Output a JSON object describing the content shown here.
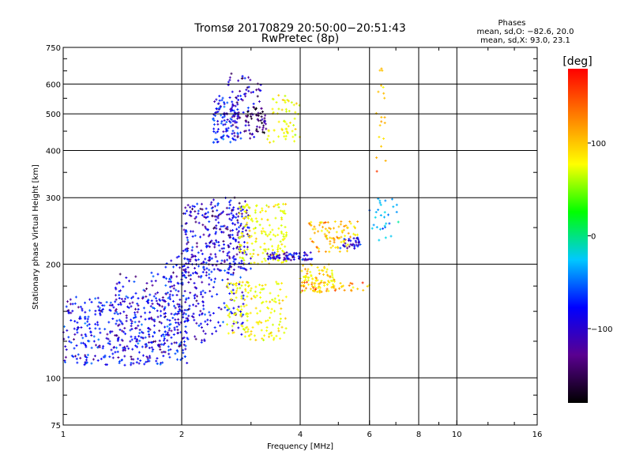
{
  "chart_data": {
    "type": "scatter",
    "title": "Tromsø 20170829 20:50:00−20:51:43",
    "subtitle": "RwPretec (8p)",
    "xlabel": "Frequency [MHz]",
    "ylabel": "Stationary phase Virtual Height [km]",
    "x_scale": "log",
    "y_scale": "log",
    "xlim": [
      1,
      16
    ],
    "ylim": [
      75,
      750
    ],
    "x_ticks": [
      1,
      2,
      4,
      6,
      8,
      10,
      16
    ],
    "x_tick_labels": [
      "1",
      "2",
      "4",
      "6",
      "8",
      "10",
      "16"
    ],
    "y_ticks": [
      75,
      100,
      200,
      300,
      400,
      500,
      600,
      750
    ],
    "y_tick_labels": [
      "75",
      "100",
      "200",
      "300",
      "400",
      "500",
      "600",
      "750"
    ],
    "grid": true,
    "phase_stats": {
      "header": "Phases",
      "o_line": "mean, sd,O: −82.6, 20.0",
      "x_line": "mean, sd,X: 93.0, 23.1"
    },
    "colorbar": {
      "label": "[deg]",
      "range": [
        -180,
        180
      ],
      "ticks": [
        100,
        0,
        -100
      ],
      "tick_labels": [
        "100",
        "0",
        "−100"
      ],
      "colors": [
        "#000000",
        "#5a0090",
        "#0000ff",
        "#00c8ff",
        "#00ff00",
        "#ffff00",
        "#ff8000",
        "#ff0000"
      ]
    },
    "clusters": [
      {
        "name": "",
        "fmin": 1.0,
        "fmax": 2.1,
        "hmin": 108,
        "hmax": 165,
        "phase": -110,
        "count": 420
      },
      {
        "name": "",
        "fmin": 1.3,
        "fmax": 2.3,
        "hmin": 120,
        "hmax": 190,
        "phase": -120,
        "count": 160
      },
      {
        "name": "",
        "fmin": 1.8,
        "fmax": 2.9,
        "hmin": 130,
        "hmax": 210,
        "phase": -115,
        "count": 180
      },
      {
        "name": "",
        "fmin": 2.0,
        "fmax": 3.0,
        "hmin": 190,
        "hmax": 290,
        "phase": -120,
        "count": 220
      },
      {
        "name": "",
        "fmin": 2.3,
        "fmax": 2.9,
        "hmin": 210,
        "hmax": 300,
        "phase": -125,
        "count": 80
      },
      {
        "name": "",
        "fmin": 2.4,
        "fmax": 2.8,
        "hmin": 420,
        "hmax": 560,
        "phase": -105,
        "count": 110
      },
      {
        "name": "",
        "fmin": 2.6,
        "fmax": 3.2,
        "hmin": 430,
        "hmax": 640,
        "phase": -130,
        "count": 70
      },
      {
        "name": "",
        "fmin": 2.9,
        "fmax": 3.3,
        "hmin": 440,
        "hmax": 520,
        "phase": -150,
        "count": 50
      },
      {
        "name": "",
        "fmin": 3.3,
        "fmax": 4.0,
        "hmin": 420,
        "hmax": 560,
        "phase": 90,
        "count": 60
      },
      {
        "name": "",
        "fmin": 2.8,
        "fmax": 3.7,
        "hmin": 200,
        "hmax": 290,
        "phase": 90,
        "count": 160
      },
      {
        "name": "",
        "fmin": 2.6,
        "fmax": 3.7,
        "hmin": 125,
        "hmax": 180,
        "phase": 95,
        "count": 160
      },
      {
        "name": "",
        "fmin": 3.3,
        "fmax": 4.3,
        "hmin": 205,
        "hmax": 215,
        "phase": -120,
        "count": 70
      },
      {
        "name": "",
        "fmin": 4.0,
        "fmax": 4.9,
        "hmin": 168,
        "hmax": 200,
        "phase": 110,
        "count": 90
      },
      {
        "name": "",
        "fmin": 4.2,
        "fmax": 5.6,
        "hmin": 215,
        "hmax": 260,
        "phase": 120,
        "count": 90
      },
      {
        "name": "",
        "fmin": 5.0,
        "fmax": 5.7,
        "hmin": 220,
        "hmax": 235,
        "phase": -120,
        "count": 30
      },
      {
        "name": "",
        "fmin": 4.0,
        "fmax": 6.0,
        "hmin": 170,
        "hmax": 180,
        "phase": 130,
        "count": 40
      },
      {
        "name": "",
        "fmin": 6.0,
        "fmax": 7.2,
        "hmin": 225,
        "hmax": 300,
        "phase": -60,
        "count": 30
      },
      {
        "name": "",
        "fmin": 6.2,
        "fmax": 6.6,
        "hmin": 350,
        "hmax": 660,
        "phase": 130,
        "count": 20
      }
    ]
  }
}
